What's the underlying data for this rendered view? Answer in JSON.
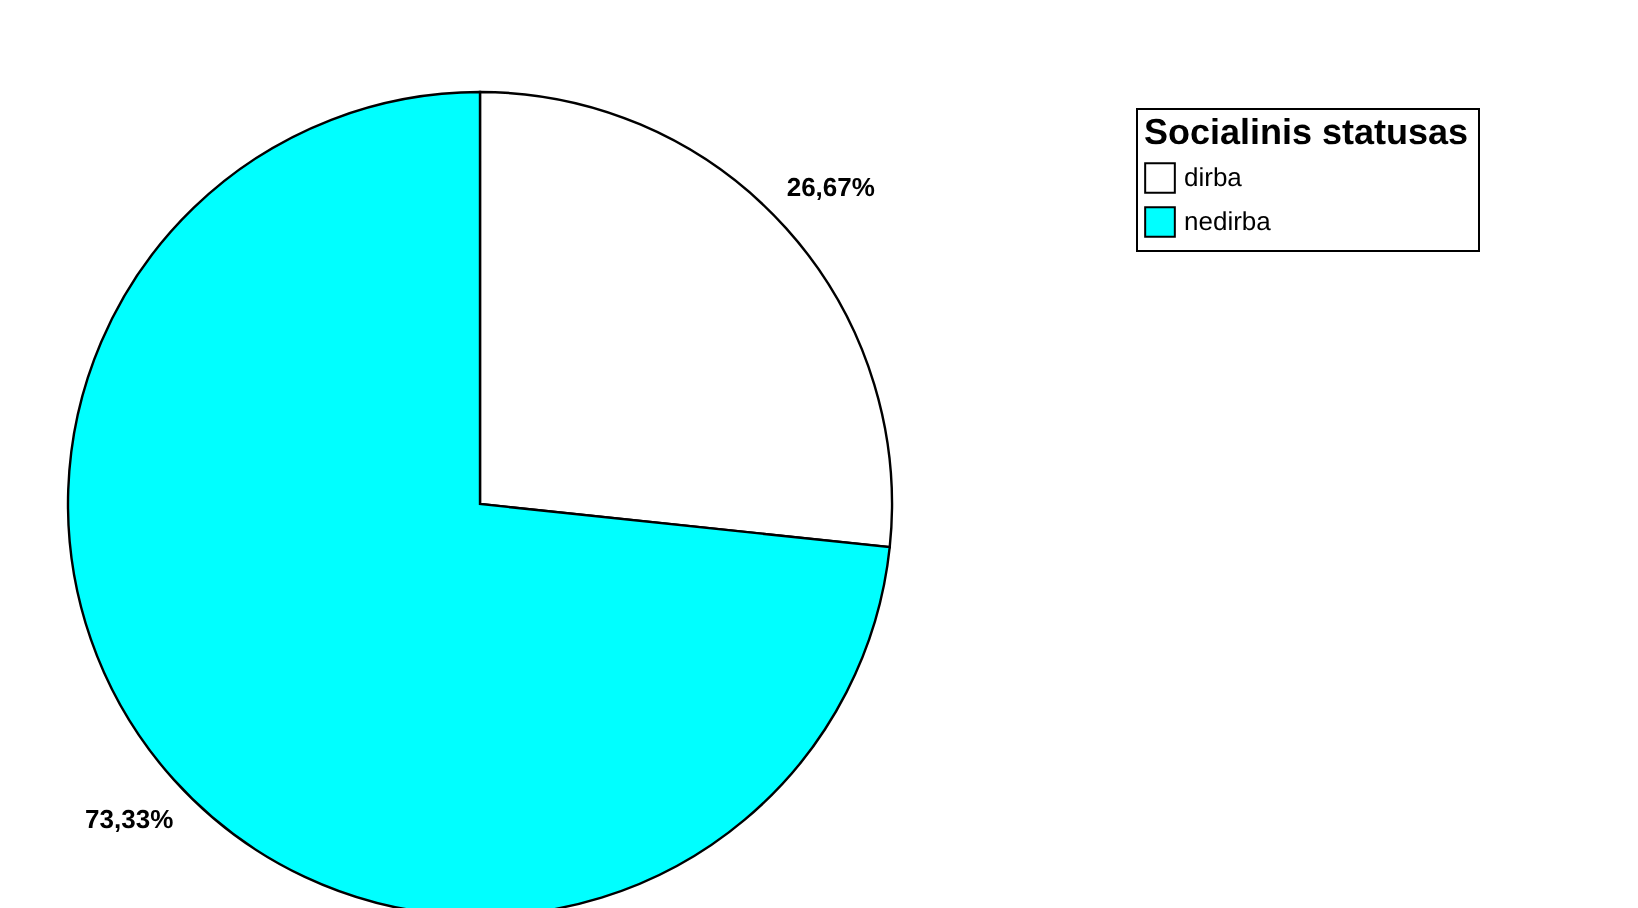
{
  "chart_data": {
    "type": "pie",
    "legend_title": "Socialinis statusas",
    "categories": [
      "dirba",
      "nedirba"
    ],
    "values": [
      26.67,
      73.33
    ],
    "colors": [
      "#ffffff",
      "#00ffff"
    ],
    "value_labels": [
      "26,67%",
      "73,33%"
    ],
    "legend": "top right"
  }
}
